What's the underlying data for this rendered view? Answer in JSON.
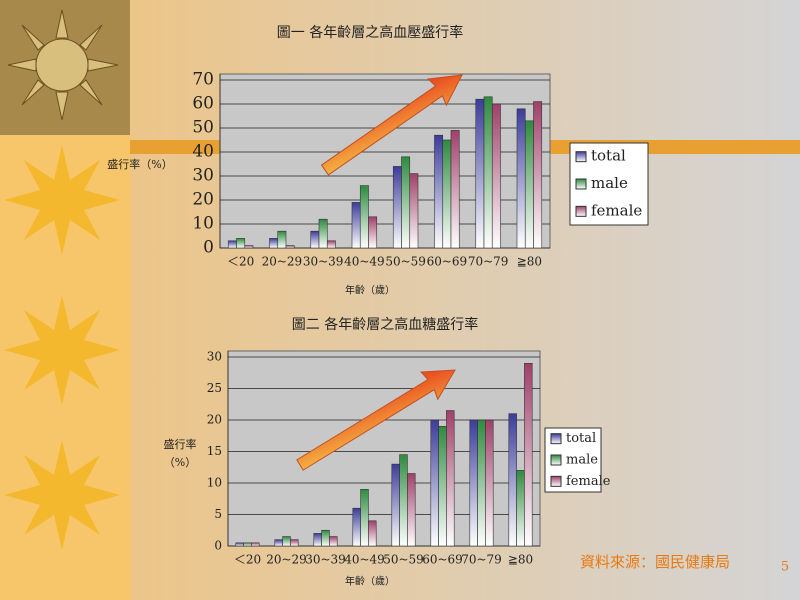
{
  "chart_data": [
    {
      "type": "bar",
      "title": "圖一 各年齡層之高血壓盛行率",
      "y_label": "盛行率（%）",
      "x_label": "年齡（歲）",
      "categories": [
        "＜20",
        "20~29",
        "30~39",
        "40~49",
        "50~59",
        "60~69",
        "70~79",
        "≧80"
      ],
      "series": [
        {
          "name": "total",
          "color": "#3c3c9c",
          "values": [
            3,
            4,
            7,
            19,
            34,
            47,
            62,
            58
          ]
        },
        {
          "name": "male",
          "color": "#2e8b3e",
          "values": [
            4,
            7,
            12,
            26,
            38,
            45,
            63,
            53
          ]
        },
        {
          "name": "female",
          "color": "#a0406a",
          "values": [
            1,
            1,
            3,
            13,
            31,
            49,
            60,
            61
          ]
        }
      ],
      "ylim": [
        0,
        70
      ],
      "yticks": [
        0,
        10,
        20,
        30,
        40,
        50,
        60,
        70
      ],
      "grid": true
    },
    {
      "type": "bar",
      "title": "圖二 各年齡層之高血糖盛行率",
      "y_label": [
        "盛行率",
        "（%）"
      ],
      "x_label": "年齡（歲）",
      "categories": [
        "＜20",
        "20~29",
        "30~39",
        "40~49",
        "50~59",
        "60~69",
        "70~79",
        "≧80"
      ],
      "series": [
        {
          "name": "total",
          "color": "#3c3c9c",
          "values": [
            0.5,
            1,
            2,
            6,
            13,
            20,
            20,
            21
          ]
        },
        {
          "name": "male",
          "color": "#2e8b3e",
          "values": [
            0.5,
            1.5,
            2.5,
            9,
            14.5,
            19,
            20,
            12
          ]
        },
        {
          "name": "female",
          "color": "#a0406a",
          "values": [
            0.5,
            1,
            1.5,
            4,
            11.5,
            21.5,
            20,
            29
          ]
        }
      ],
      "ylim": [
        0,
        30
      ],
      "yticks": [
        0,
        5,
        10,
        15,
        20,
        25,
        30
      ],
      "grid": true
    }
  ],
  "footer": {
    "source": "資料來源：國民健康局",
    "page": "5"
  }
}
